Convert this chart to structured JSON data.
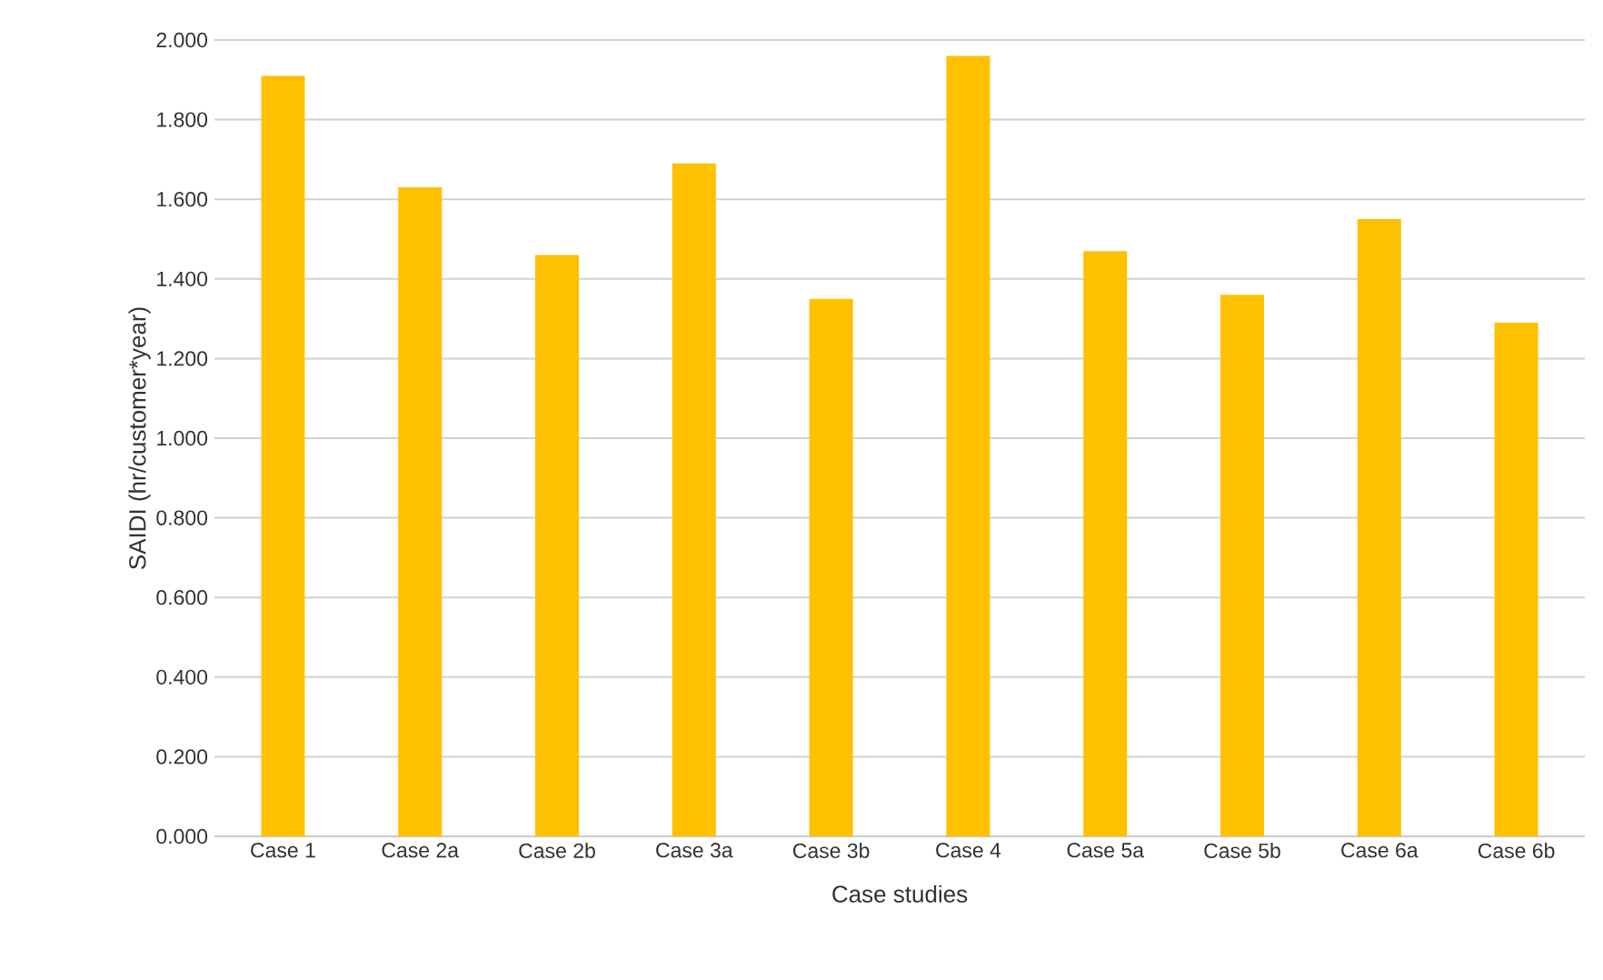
{
  "chart_data": {
    "type": "bar",
    "xlabel": "Case studies",
    "ylabel": "SAIDI (hr/customer*year)",
    "categories": [
      "Case 1",
      "Case 2a",
      "Case 2b",
      "Case 3a",
      "Case 3b",
      "Case 4",
      "Case 5a",
      "Case 5b",
      "Case 6a",
      "Case 6b"
    ],
    "values": [
      1.91,
      1.63,
      1.46,
      1.69,
      1.35,
      1.96,
      1.47,
      1.36,
      1.55,
      1.29
    ],
    "color": "#ffc000",
    "ylim": [
      0,
      2
    ],
    "yticks": [
      {
        "value": 0,
        "label": "0.000"
      },
      {
        "value": 0.2,
        "label": "0.200"
      },
      {
        "value": 0.4,
        "label": "0.400"
      },
      {
        "value": 0.6,
        "label": "0.600"
      },
      {
        "value": 0.8,
        "label": "0.800"
      },
      {
        "value": 1.0,
        "label": "1.000"
      },
      {
        "value": 1.2,
        "label": "1.200"
      },
      {
        "value": 1.4,
        "label": "1.400"
      },
      {
        "value": 1.6,
        "label": "1.600"
      },
      {
        "value": 1.8,
        "label": "1.800"
      },
      {
        "value": 2.0,
        "label": "2.000"
      }
    ],
    "grid": "y"
  }
}
